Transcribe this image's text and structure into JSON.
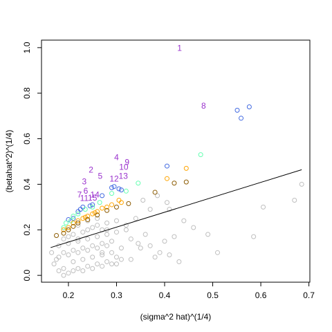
{
  "chart_data": {
    "type": "scatter",
    "xlabel": "(sigma^2 hat)^(1/4)",
    "ylabel": "(betahat^2)^(1/4)",
    "xlim": [
      0.144,
      0.702
    ],
    "ylim": [
      -0.03,
      1.033
    ],
    "xticks": [
      0.2,
      0.3,
      0.4,
      0.5,
      0.6,
      0.7
    ],
    "yticks": [
      {
        "value": 0,
        "label": "0.0"
      },
      0.2,
      0.4,
      0.6,
      0.8,
      {
        "value": 1,
        "label": "1.0"
      }
    ],
    "series": [
      {
        "color": "#bebebe",
        "x": [
          0.685,
          0.67,
          0.605,
          0.585,
          0.51,
          0.49,
          0.46,
          0.44,
          0.42,
          0.41,
          0.39,
          0.37,
          0.36,
          0.345,
          0.33,
          0.32,
          0.405,
          0.385,
          0.355,
          0.37,
          0.34,
          0.41,
          0.43,
          0.3,
          0.28,
          0.27,
          0.18,
          0.19,
          0.2,
          0.21,
          0.22,
          0.23,
          0.24,
          0.25,
          0.26,
          0.27,
          0.28,
          0.29,
          0.3,
          0.31,
          0.18,
          0.19,
          0.2,
          0.21,
          0.22,
          0.23,
          0.24,
          0.25,
          0.26,
          0.27,
          0.28,
          0.29,
          0.17,
          0.19,
          0.2,
          0.21,
          0.22,
          0.23,
          0.24,
          0.25,
          0.26,
          0.27,
          0.28,
          0.3,
          0.18,
          0.2,
          0.22,
          0.24,
          0.26,
          0.28,
          0.3,
          0.32,
          0.19,
          0.21,
          0.23,
          0.25,
          0.27,
          0.29,
          0.31,
          0.165,
          0.175,
          0.2,
          0.22,
          0.24,
          0.26,
          0.33,
          0.35,
          0.38,
          0.4
        ],
        "values": [
          0.4,
          0.33,
          0.3,
          0.17,
          0.1,
          0.18,
          0.21,
          0.24,
          0.17,
          0.09,
          0.1,
          0.13,
          0.18,
          0.14,
          0.07,
          0.22,
          0.32,
          0.35,
          0.33,
          0.29,
          0.25,
          0.29,
          0.06,
          0.05,
          0.2,
          0.1,
          0.02,
          0.03,
          0.01,
          0.02,
          0.03,
          0.02,
          0.04,
          0.03,
          0.05,
          0.04,
          0.06,
          0.05,
          0.08,
          0.07,
          0.08,
          0.1,
          0.09,
          0.11,
          0.1,
          0.12,
          0.11,
          0.13,
          0.12,
          0.14,
          0.13,
          0.15,
          0.05,
          0.16,
          0.17,
          0.18,
          0.16,
          0.19,
          0.2,
          0.21,
          0.22,
          0.2,
          0.23,
          0.24,
          0.13,
          0.14,
          0.15,
          0.16,
          0.17,
          0.18,
          0.19,
          0.2,
          0.0,
          0.06,
          0.07,
          0.08,
          0.09,
          0.1,
          0.12,
          0.1,
          0.07,
          0.2,
          0.22,
          0.24,
          0.25,
          0.16,
          0.12,
          0.08,
          0.15
        ]
      },
      {
        "color": "#4169e1",
        "x": [
          0.551,
          0.559,
          0.576,
          0.405,
          0.29,
          0.295,
          0.305,
          0.31,
          0.27,
          0.25,
          0.245,
          0.23,
          0.225,
          0.22,
          0.21,
          0.2
        ],
        "values": [
          0.725,
          0.69,
          0.74,
          0.48,
          0.385,
          0.39,
          0.38,
          0.375,
          0.35,
          0.31,
          0.305,
          0.3,
          0.29,
          0.28,
          0.25,
          0.245
        ]
      },
      {
        "color": "#66ffb2",
        "x": [
          0.475,
          0.345,
          0.32,
          0.29,
          0.265,
          0.25,
          0.235,
          0.22,
          0.21,
          0.195,
          0.19,
          0.205
        ],
        "values": [
          0.53,
          0.405,
          0.37,
          0.36,
          0.32,
          0.3,
          0.29,
          0.27,
          0.26,
          0.23,
          0.21,
          0.24
        ]
      },
      {
        "color": "#ffa500",
        "x": [
          0.445,
          0.405,
          0.305,
          0.31,
          0.29,
          0.28,
          0.27,
          0.26,
          0.25,
          0.24,
          0.23,
          0.22,
          0.21,
          0.2,
          0.19,
          0.255,
          0.235
        ],
        "values": [
          0.47,
          0.425,
          0.33,
          0.32,
          0.31,
          0.3,
          0.295,
          0.28,
          0.27,
          0.26,
          0.25,
          0.24,
          0.23,
          0.21,
          0.2,
          0.275,
          0.255
        ]
      },
      {
        "color": "#8b5a00",
        "x": [
          0.445,
          0.42,
          0.38,
          0.325,
          0.3,
          0.28,
          0.26,
          0.24,
          0.22,
          0.2,
          0.19,
          0.175,
          0.21
        ],
        "values": [
          0.41,
          0.405,
          0.365,
          0.315,
          0.3,
          0.285,
          0.265,
          0.245,
          0.23,
          0.2,
          0.185,
          0.175,
          0.215
        ]
      },
      {
        "type": "line",
        "color": "#000000",
        "x": [
          0.163,
          0.685
        ],
        "values": [
          0.122,
          0.464
        ]
      }
    ],
    "annotations": [
      {
        "label": "1",
        "x": 0.431,
        "y": 0.995
      },
      {
        "label": "8",
        "x": 0.481,
        "y": 0.742
      },
      {
        "label": "4",
        "x": 0.3,
        "y": 0.516
      },
      {
        "label": "9",
        "x": 0.322,
        "y": 0.495
      },
      {
        "label": "10",
        "x": 0.315,
        "y": 0.473
      },
      {
        "label": "2",
        "x": 0.247,
        "y": 0.461
      },
      {
        "label": "5",
        "x": 0.266,
        "y": 0.434
      },
      {
        "label": "13",
        "x": 0.314,
        "y": 0.434
      },
      {
        "label": "12",
        "x": 0.295,
        "y": 0.421
      },
      {
        "label": "3",
        "x": 0.233,
        "y": 0.409
      },
      {
        "label": "6",
        "x": 0.236,
        "y": 0.369
      },
      {
        "label": "7",
        "x": 0.223,
        "y": 0.351
      },
      {
        "label": "14",
        "x": 0.255,
        "y": 0.351
      },
      {
        "label": "11",
        "x": 0.233,
        "y": 0.336
      },
      {
        "label": "15",
        "x": 0.25,
        "y": 0.338
      }
    ]
  }
}
